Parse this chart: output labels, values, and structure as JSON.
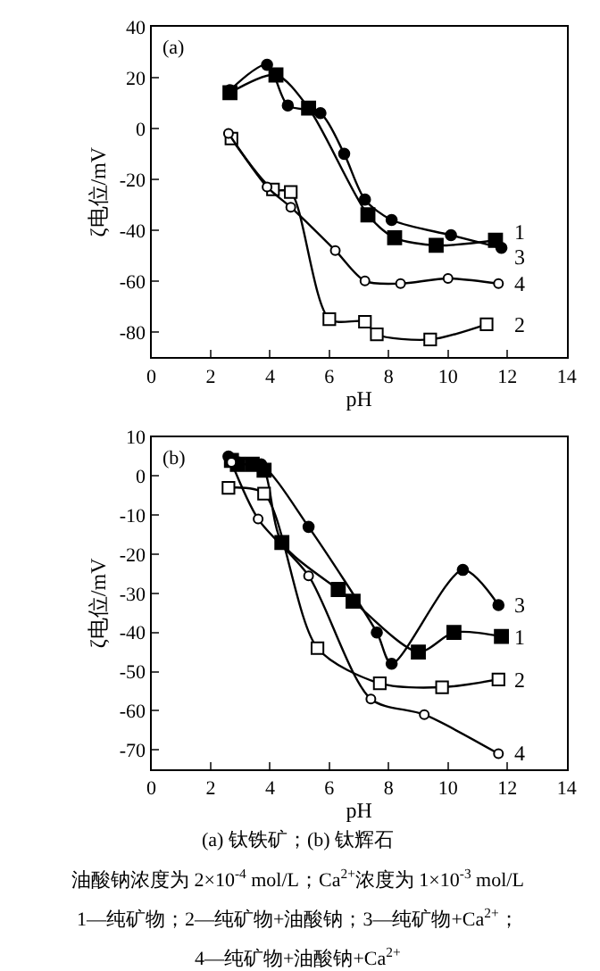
{
  "chart_data": [
    {
      "type": "line",
      "annotations": [
        "(a)"
      ],
      "xlabel": "pH",
      "ylabel": "ζ电位/mV",
      "xlim": [
        0,
        14
      ],
      "xticks": [
        0,
        2,
        4,
        6,
        8,
        10,
        12,
        14
      ],
      "ylim": [
        -90,
        40
      ],
      "yticks": [
        -80,
        -60,
        -40,
        -20,
        0,
        20,
        40
      ],
      "legend": "right",
      "series": [
        {
          "name": "1",
          "color": "#000000",
          "marker": "square",
          "x": [
            2.65,
            4.2,
            5.3,
            7.3,
            8.2,
            9.6,
            11.6
          ],
          "values": [
            14,
            21,
            8,
            -34,
            -43,
            -46,
            -44
          ]
        },
        {
          "name": "2",
          "color": "#000000",
          "marker": "square-open",
          "x": [
            2.7,
            4.1,
            4.7,
            6.0,
            7.2,
            7.6,
            9.4,
            11.3
          ],
          "values": [
            -4,
            -24,
            -25,
            -75,
            -76,
            -81,
            -83,
            -77
          ]
        },
        {
          "name": "3",
          "color": "#000000",
          "marker": "circle",
          "x": [
            2.65,
            3.9,
            4.6,
            5.7,
            6.5,
            7.2,
            8.1,
            10.1,
            11.8
          ],
          "values": [
            15,
            25,
            9,
            6,
            -10,
            -28,
            -36,
            -42,
            -47
          ]
        },
        {
          "name": "4",
          "color": "#000000",
          "marker": "circle-open",
          "x": [
            2.6,
            3.9,
            4.7,
            6.2,
            7.2,
            8.4,
            10.0,
            11.7
          ],
          "values": [
            -2,
            -23,
            -31,
            -48,
            -60,
            -61,
            -59,
            -61
          ]
        }
      ]
    },
    {
      "type": "line",
      "annotations": [
        "(b)",
        "(a) 钛铁矿；(b) 钛辉石",
        "油酸钠浓度为 2×10$^{-4}$ mol/L；Ca$^{2+}$浓度为 1×10$^{-3}$ mol/L",
        "1—纯矿物；2—纯矿物+油酸钠；3—纯矿物+Ca$^{2+}$；",
        "4—纯矿物+油酸钠+Ca$^{2+}$"
      ],
      "xlabel": "pH",
      "ylabel": "ζ电位/mV",
      "xlim": [
        0,
        14
      ],
      "xticks": [
        0,
        2,
        4,
        6,
        8,
        10,
        12,
        14
      ],
      "ylim": [
        -75,
        10
      ],
      "yticks": [
        -70,
        -60,
        -50,
        -40,
        -30,
        -20,
        -10,
        0,
        10
      ],
      "legend": "right",
      "series": [
        {
          "name": "1",
          "color": "#000000",
          "marker": "square",
          "x": [
            2.7,
            2.9,
            3.4,
            3.8,
            4.4,
            6.3,
            6.8,
            9.0,
            10.2,
            11.8
          ],
          "values": [
            4,
            3,
            3,
            1.5,
            -17,
            -29,
            -32,
            -45,
            -40,
            -41
          ]
        },
        {
          "name": "2",
          "color": "#000000",
          "marker": "square-open",
          "x": [
            2.6,
            3.8,
            5.6,
            7.7,
            9.8,
            11.7
          ],
          "values": [
            -3,
            -4.5,
            -44,
            -53,
            -54,
            -52
          ]
        },
        {
          "name": "3",
          "color": "#000000",
          "marker": "circle",
          "x": [
            2.6,
            3.7,
            5.3,
            7.6,
            8.1,
            10.5,
            11.7
          ],
          "values": [
            5,
            3,
            -13,
            -40,
            -48,
            -24,
            -33
          ]
        },
        {
          "name": "4",
          "color": "#000000",
          "marker": "circle-open",
          "x": [
            2.7,
            3.6,
            5.3,
            7.4,
            9.2,
            11.7
          ],
          "values": [
            3.5,
            -11,
            -25.5,
            -57,
            -61,
            -71
          ]
        }
      ]
    }
  ]
}
